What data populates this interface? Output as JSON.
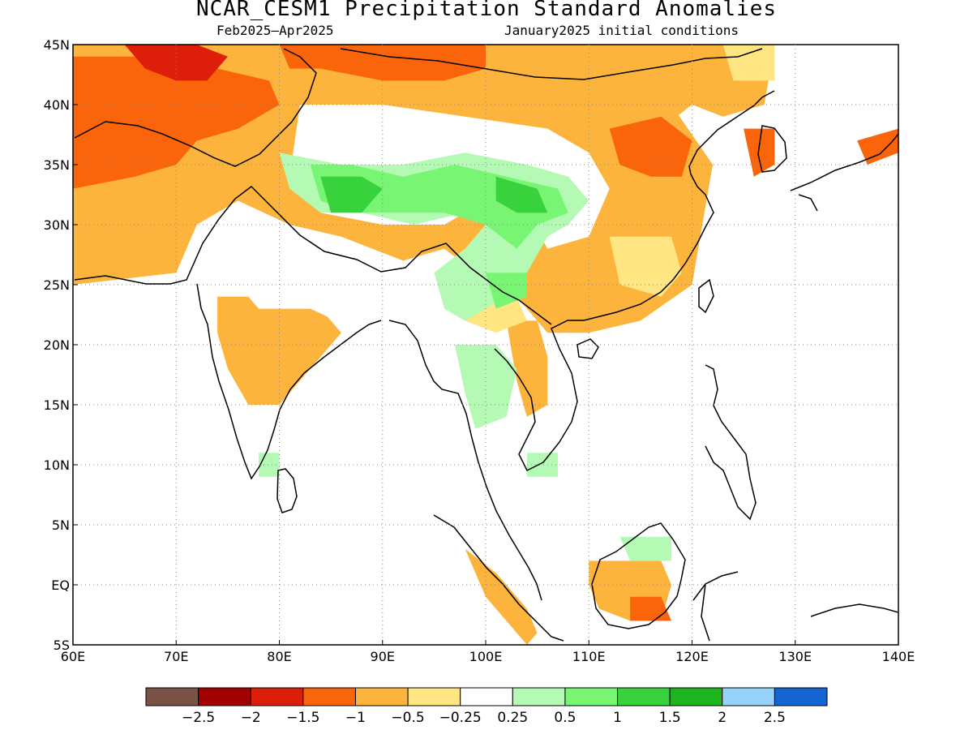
{
  "title": "NCAR_CESM1 Precipitation Standard Anomalies",
  "subtitle_left": "Feb2025–Apr2025",
  "subtitle_right": "January2025 initial conditions",
  "map": {
    "lon_range": [
      60,
      140
    ],
    "lat_range": [
      -5,
      45
    ],
    "lon_ticks": [
      {
        "value": 60,
        "label": "60E"
      },
      {
        "value": 70,
        "label": "70E"
      },
      {
        "value": 80,
        "label": "80E"
      },
      {
        "value": 90,
        "label": "90E"
      },
      {
        "value": 100,
        "label": "100E"
      },
      {
        "value": 110,
        "label": "110E"
      },
      {
        "value": 120,
        "label": "120E"
      },
      {
        "value": 130,
        "label": "130E"
      },
      {
        "value": 140,
        "label": "140E"
      }
    ],
    "lat_ticks": [
      {
        "value": 45,
        "label": "45N"
      },
      {
        "value": 40,
        "label": "40N"
      },
      {
        "value": 35,
        "label": "35N"
      },
      {
        "value": 30,
        "label": "30N"
      },
      {
        "value": 25,
        "label": "25N"
      },
      {
        "value": 20,
        "label": "20N"
      },
      {
        "value": 15,
        "label": "15N"
      },
      {
        "value": 10,
        "label": "10N"
      },
      {
        "value": 5,
        "label": "5N"
      },
      {
        "value": 0,
        "label": "EQ"
      },
      {
        "value": -5,
        "label": "5S"
      }
    ],
    "grid": "dotted"
  },
  "colorbar": {
    "colors": [
      "#7a5246",
      "#a50000",
      "#dc1e0a",
      "#fa640a",
      "#fcb43c",
      "#ffe682",
      "#ffffff",
      "#b4fab4",
      "#78f573",
      "#37d23c",
      "#1eb41e",
      "#96d2fa",
      "#1464d2"
    ],
    "labels": [
      "−2.5",
      "−2",
      "−1.5",
      "−1",
      "−0.5",
      "−0.25",
      "0.25",
      "0.5",
      "1",
      "1.5",
      "2",
      "2.5"
    ]
  },
  "anomaly_regions": [
    {
      "level": "-0.5",
      "color": "#fcb43c",
      "lonlat": [
        [
          60,
          45
        ],
        [
          100,
          45
        ],
        [
          100,
          40
        ],
        [
          118,
          40
        ],
        [
          122,
          35
        ],
        [
          121,
          30
        ],
        [
          120,
          25
        ],
        [
          115,
          22
        ],
        [
          110,
          21
        ],
        [
          106,
          21
        ],
        [
          103,
          24
        ],
        [
          99,
          26
        ],
        [
          96,
          28
        ],
        [
          92,
          27
        ],
        [
          86,
          29
        ],
        [
          81,
          30
        ],
        [
          76,
          32
        ],
        [
          72,
          30
        ],
        [
          70,
          26
        ],
        [
          60,
          25
        ]
      ]
    },
    {
      "level": "-0.5",
      "color": "#fcb43c",
      "lonlat": [
        [
          60,
          45
        ],
        [
          100,
          45
        ],
        [
          100,
          41
        ],
        [
          93,
          41
        ],
        [
          88,
          40
        ],
        [
          82,
          39
        ],
        [
          78,
          37
        ],
        [
          73,
          36
        ],
        [
          70,
          32
        ],
        [
          67,
          27
        ],
        [
          60,
          26
        ]
      ]
    },
    {
      "level": "-0.5",
      "color": "#fcb43c",
      "lonlat": [
        [
          100,
          45
        ],
        [
          128,
          45
        ],
        [
          127,
          40
        ],
        [
          123,
          39
        ],
        [
          120,
          40
        ],
        [
          117,
          38
        ],
        [
          113,
          36
        ],
        [
          106,
          37
        ],
        [
          100,
          38
        ]
      ]
    },
    {
      "level": "-0.5",
      "color": "#fcb43c",
      "lonlat": [
        [
          74,
          24
        ],
        [
          80,
          24
        ],
        [
          84,
          23
        ],
        [
          86,
          21
        ],
        [
          83,
          18
        ],
        [
          80,
          15
        ],
        [
          77,
          15
        ],
        [
          75,
          18
        ],
        [
          74,
          21
        ]
      ]
    },
    {
      "level": "-0.5",
      "color": "#fcb43c",
      "lonlat": [
        [
          102,
          22
        ],
        [
          105,
          22
        ],
        [
          106,
          19
        ],
        [
          106,
          15
        ],
        [
          104,
          14
        ],
        [
          103,
          17
        ]
      ]
    },
    {
      "level": "-0.5",
      "color": "#fcb43c",
      "lonlat": [
        [
          110,
          2
        ],
        [
          117,
          2
        ],
        [
          118,
          0
        ],
        [
          117,
          -3
        ],
        [
          114,
          -3
        ],
        [
          111,
          -2
        ],
        [
          110,
          0
        ]
      ]
    },
    {
      "level": "-0.5",
      "color": "#fcb43c",
      "lonlat": [
        [
          98,
          3
        ],
        [
          101,
          1
        ],
        [
          104,
          -2
        ],
        [
          105,
          -4
        ],
        [
          104,
          -5
        ],
        [
          102,
          -3
        ],
        [
          100,
          -1
        ]
      ]
    },
    {
      "level": "-0.25",
      "color": "#ffe682",
      "lonlat": [
        [
          96,
          25
        ],
        [
          100,
          25
        ],
        [
          103,
          24
        ],
        [
          104,
          22
        ],
        [
          101,
          21
        ],
        [
          98,
          22
        ]
      ]
    },
    {
      "level": "-0.25",
      "color": "#ffe682",
      "lonlat": [
        [
          112,
          29
        ],
        [
          118,
          29
        ],
        [
          119,
          26
        ],
        [
          117,
          24
        ],
        [
          113,
          25
        ]
      ]
    },
    {
      "level": "-0.25",
      "color": "#ffe682",
      "lonlat": [
        [
          123,
          45
        ],
        [
          128,
          45
        ],
        [
          128,
          42
        ],
        [
          124,
          42
        ]
      ]
    },
    {
      "level": "-1",
      "color": "#fa640a",
      "lonlat": [
        [
          60,
          44
        ],
        [
          67,
          44
        ],
        [
          74,
          43
        ],
        [
          79,
          42
        ],
        [
          80,
          40
        ],
        [
          76,
          38
        ],
        [
          72,
          37
        ],
        [
          70,
          35
        ],
        [
          66,
          34
        ],
        [
          60,
          33
        ]
      ]
    },
    {
      "level": "-1",
      "color": "#fa640a",
      "lonlat": [
        [
          80,
          45
        ],
        [
          100,
          45
        ],
        [
          100,
          43
        ],
        [
          96,
          42
        ],
        [
          90,
          42
        ],
        [
          84,
          43
        ],
        [
          81,
          43
        ]
      ]
    },
    {
      "level": "-1",
      "color": "#fa640a",
      "lonlat": [
        [
          112,
          38
        ],
        [
          117,
          39
        ],
        [
          120,
          37
        ],
        [
          119,
          34
        ],
        [
          116,
          34
        ],
        [
          113,
          35
        ]
      ]
    },
    {
      "level": "-1",
      "color": "#fa640a",
      "lonlat": [
        [
          114,
          -1
        ],
        [
          117,
          -1
        ],
        [
          118,
          -3
        ],
        [
          116,
          -3
        ],
        [
          114,
          -3
        ]
      ]
    },
    {
      "level": "-1",
      "color": "#fa640a",
      "lonlat": [
        [
          125,
          38
        ],
        [
          128,
          38
        ],
        [
          128,
          35
        ],
        [
          126,
          34
        ]
      ]
    },
    {
      "level": "-1",
      "color": "#fa640a",
      "lonlat": [
        [
          136,
          37
        ],
        [
          140,
          38
        ],
        [
          140,
          36
        ],
        [
          137,
          35
        ]
      ]
    },
    {
      "level": "-1.5",
      "color": "#dc1e0a",
      "lonlat": [
        [
          65,
          45
        ],
        [
          72,
          45
        ],
        [
          75,
          44
        ],
        [
          73,
          42
        ],
        [
          70,
          42
        ],
        [
          67,
          43
        ]
      ]
    },
    {
      "level": "0.25",
      "color": "#ffffff",
      "lonlat": [
        [
          82,
          40
        ],
        [
          90,
          40
        ],
        [
          98,
          39
        ],
        [
          106,
          38
        ],
        [
          110,
          36
        ],
        [
          112,
          33
        ],
        [
          110,
          29
        ],
        [
          106,
          28
        ],
        [
          104,
          31
        ],
        [
          100,
          32
        ],
        [
          96,
          30
        ],
        [
          90,
          30
        ],
        [
          84,
          31
        ],
        [
          81,
          34
        ]
      ]
    },
    {
      "level": "0.25",
      "color": "#ffffff",
      "lonlat": [
        [
          76,
          25
        ],
        [
          88,
          25
        ],
        [
          92,
          27
        ],
        [
          96,
          26
        ],
        [
          96,
          22
        ],
        [
          94,
          18
        ],
        [
          90,
          17
        ],
        [
          88,
          21
        ],
        [
          83,
          23
        ],
        [
          78,
          23
        ]
      ]
    },
    {
      "level": "0.5",
      "color": "#b4fab4",
      "lonlat": [
        [
          80,
          36
        ],
        [
          86,
          35
        ],
        [
          92,
          35
        ],
        [
          98,
          36
        ],
        [
          104,
          35
        ],
        [
          108,
          34
        ],
        [
          110,
          32
        ],
        [
          108,
          30
        ],
        [
          106,
          29
        ],
        [
          104,
          26
        ],
        [
          102,
          24
        ],
        [
          100,
          23
        ],
        [
          98,
          22
        ],
        [
          96,
          23
        ],
        [
          95,
          26
        ],
        [
          98,
          28
        ],
        [
          100,
          30
        ],
        [
          98,
          31
        ],
        [
          93,
          30
        ],
        [
          88,
          31
        ],
        [
          84,
          31
        ],
        [
          81,
          33
        ]
      ]
    },
    {
      "level": "0.5",
      "color": "#b4fab4",
      "lonlat": [
        [
          97,
          20
        ],
        [
          101,
          20
        ],
        [
          103,
          18
        ],
        [
          102,
          14
        ],
        [
          99,
          13
        ],
        [
          98,
          16
        ]
      ]
    },
    {
      "level": "0.5",
      "color": "#b4fab4",
      "lonlat": [
        [
          104,
          11
        ],
        [
          107,
          11
        ],
        [
          107,
          9
        ],
        [
          104,
          9
        ]
      ]
    },
    {
      "level": "0.5",
      "color": "#b4fab4",
      "lonlat": [
        [
          78,
          11
        ],
        [
          80,
          11
        ],
        [
          80,
          9
        ],
        [
          78,
          9
        ]
      ]
    },
    {
      "level": "0.5",
      "color": "#b4fab4",
      "lonlat": [
        [
          113,
          4
        ],
        [
          118,
          4
        ],
        [
          118,
          2
        ],
        [
          114,
          2
        ]
      ]
    },
    {
      "level": "1",
      "color": "#78f573",
      "lonlat": [
        [
          83,
          35
        ],
        [
          87,
          35
        ],
        [
          92,
          34
        ],
        [
          97,
          35
        ],
        [
          102,
          34
        ],
        [
          107,
          33
        ],
        [
          108,
          31
        ],
        [
          105,
          30
        ],
        [
          103,
          28
        ],
        [
          100,
          30
        ],
        [
          96,
          31
        ],
        [
          92,
          31
        ],
        [
          87,
          31
        ],
        [
          84,
          32
        ]
      ]
    },
    {
      "level": "1",
      "color": "#78f573",
      "lonlat": [
        [
          100,
          26
        ],
        [
          104,
          26
        ],
        [
          104,
          24
        ],
        [
          101,
          23
        ]
      ]
    },
    {
      "level": "1.5",
      "color": "#37d23c",
      "lonlat": [
        [
          84,
          34
        ],
        [
          88,
          34
        ],
        [
          90,
          33
        ],
        [
          88,
          31
        ],
        [
          85,
          31
        ]
      ]
    },
    {
      "level": "1.5",
      "color": "#37d23c",
      "lonlat": [
        [
          101,
          34
        ],
        [
          105,
          33
        ],
        [
          106,
          31
        ],
        [
          103,
          31
        ],
        [
          101,
          32
        ]
      ]
    }
  ]
}
